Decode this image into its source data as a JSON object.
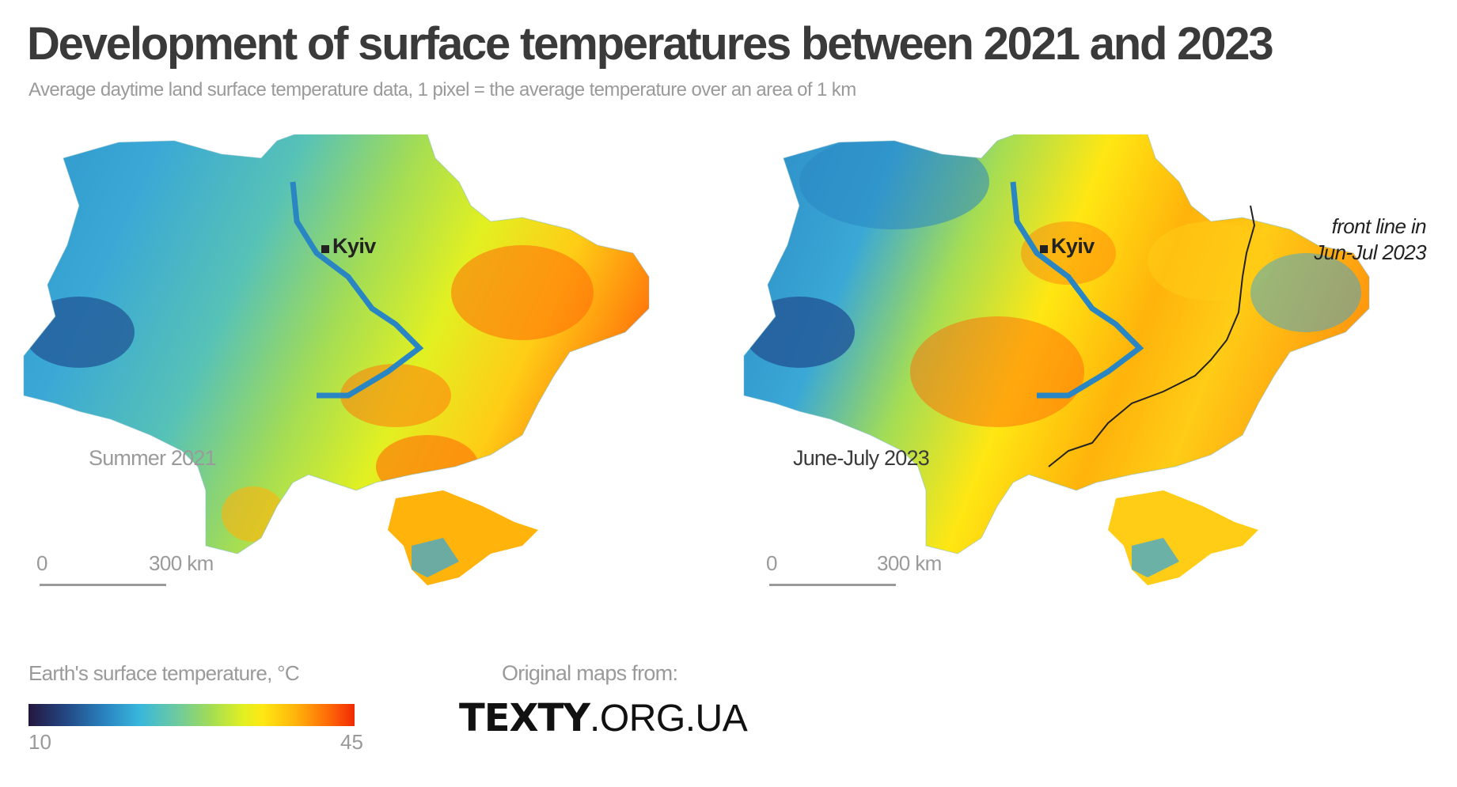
{
  "title": "Development of surface temperatures between 2021 and 2023",
  "subtitle": "Average daytime land surface temperature data, 1 pixel = the average temperature over an area of 1 km",
  "maps": [
    {
      "period_label": "Summer 2021",
      "city_label": "Kyiv",
      "scale": {
        "zero": "0",
        "end": "300 km"
      }
    },
    {
      "period_label": "June-July 2023",
      "city_label": "Kyiv",
      "scale": {
        "zero": "0",
        "end": "300 km"
      },
      "annotation": {
        "line1": "front line in",
        "line2": "Jun-Jul 2023"
      }
    }
  ],
  "legend": {
    "title": "Earth's surface temperature, °C",
    "min": "10",
    "max": "45",
    "colors": [
      "#24163f",
      "#2a86c2",
      "#38b7dc",
      "#a4dd54",
      "#ffe713",
      "#ff6a07",
      "#f02a04"
    ]
  },
  "source": {
    "label": "Original maps from:",
    "logo_bold": "TEXTY",
    "logo_rest": ".ORG.UA"
  }
}
